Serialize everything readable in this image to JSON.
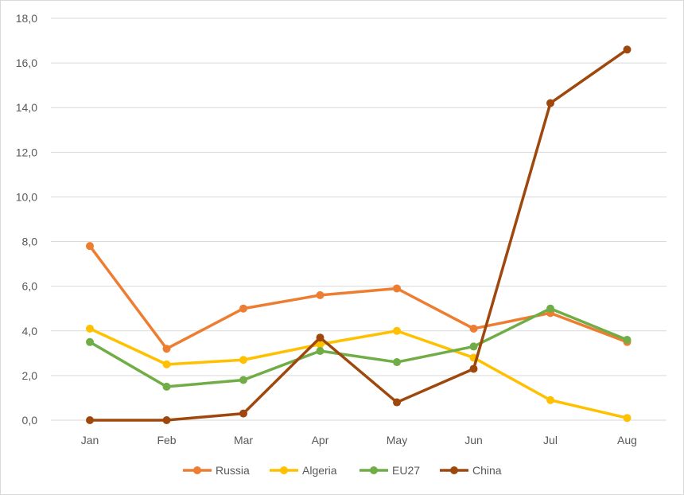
{
  "chart_data": {
    "type": "line",
    "categories": [
      "Jan",
      "Feb",
      "Mar",
      "Apr",
      "May",
      "Jun",
      "Jul",
      "Aug"
    ],
    "ylim": [
      0,
      18
    ],
    "ytick_labels": [
      "0,0",
      "2,0",
      "4,0",
      "6,0",
      "8,0",
      "10,0",
      "12,0",
      "14,0",
      "16,0",
      "18,0"
    ],
    "grid": true,
    "legend_position": "bottom",
    "series": [
      {
        "name": "Russia",
        "color": "#ED7D31",
        "values": [
          7.8,
          3.2,
          5.0,
          5.6,
          5.9,
          4.1,
          4.8,
          3.5
        ]
      },
      {
        "name": "Algeria",
        "color": "#FFC000",
        "values": [
          4.1,
          2.5,
          2.7,
          3.4,
          4.0,
          2.8,
          0.9,
          0.1
        ]
      },
      {
        "name": "EU27",
        "color": "#70AD47",
        "values": [
          3.5,
          1.5,
          1.8,
          3.1,
          2.6,
          3.3,
          5.0,
          3.6
        ]
      },
      {
        "name": "China",
        "color": "#9E480E",
        "values": [
          0.0,
          0.0,
          0.3,
          3.7,
          0.8,
          2.3,
          14.2,
          16.6
        ]
      }
    ]
  }
}
